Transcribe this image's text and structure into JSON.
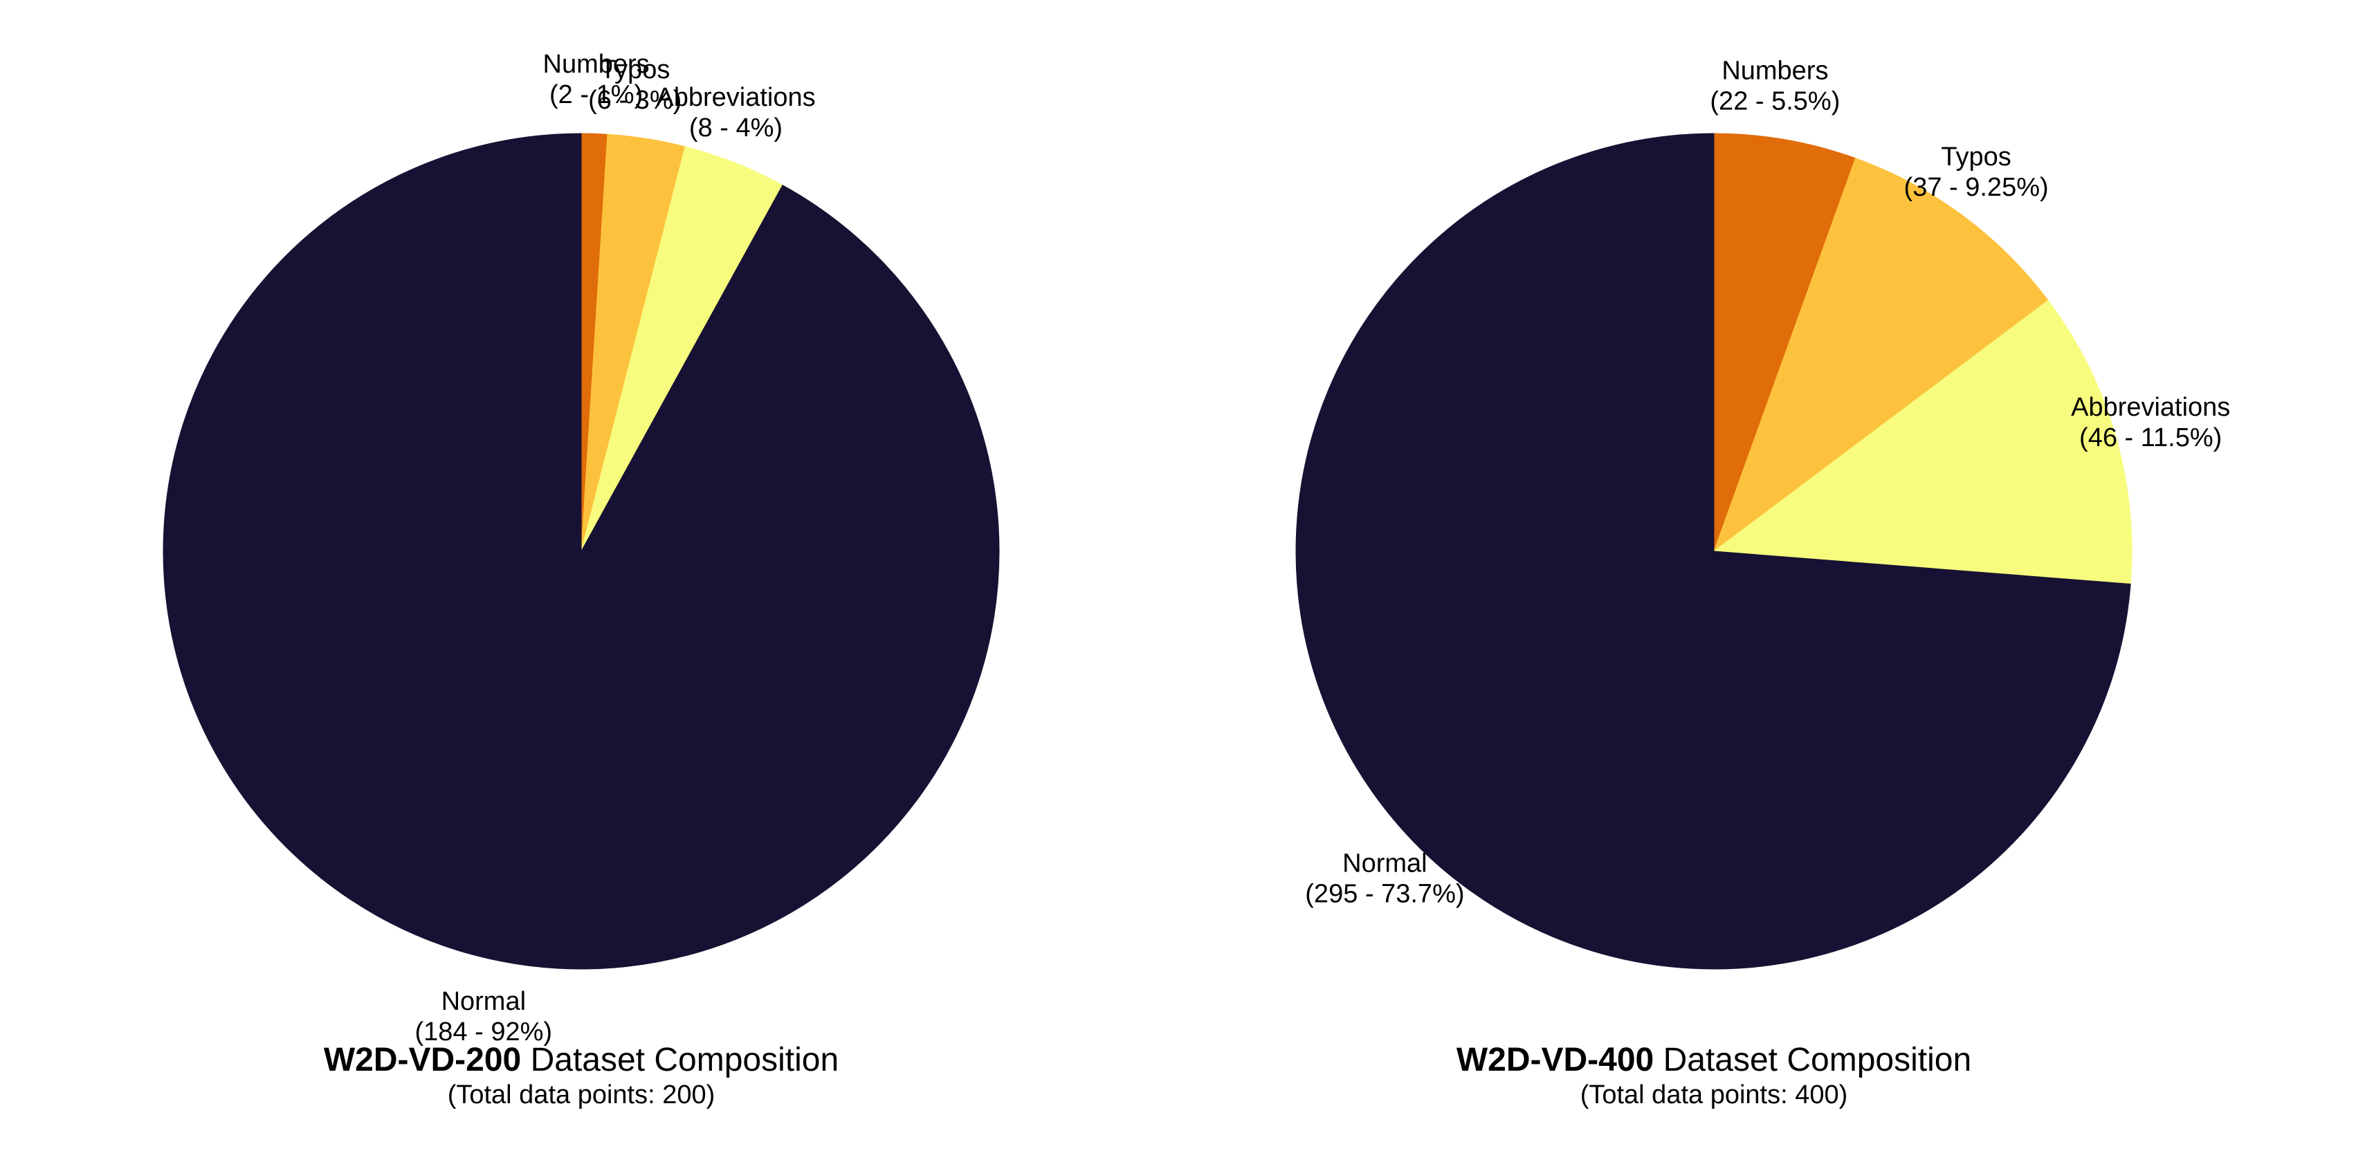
{
  "chart_data": [
    {
      "type": "pie",
      "title_bold": "W2D-VD-200",
      "title_rest": " Dataset Composition",
      "subtitle": "(Total data points: 200)",
      "start_angle": 90,
      "direction": "clockwise",
      "slices": [
        {
          "name": "Numbers",
          "count": 2,
          "percent": 1,
          "detail": "(2 - 1%)",
          "color": "#e06c0a"
        },
        {
          "name": "Typos",
          "count": 6,
          "percent": 3,
          "detail": "(6 - 3%)",
          "color": "#fdc23d"
        },
        {
          "name": "Abbreviations",
          "count": 8,
          "percent": 4,
          "detail": "(8 - 4%)",
          "color": "#f7fc7e"
        },
        {
          "name": "Normal",
          "count": 184,
          "percent": 92,
          "detail": "(184 - 92%)",
          "color": "#171233"
        }
      ]
    },
    {
      "type": "pie",
      "title_bold": "W2D-VD-400",
      "title_rest": " Dataset Composition",
      "subtitle": "(Total data points: 400)",
      "start_angle": 90,
      "direction": "clockwise",
      "slices": [
        {
          "name": "Numbers",
          "count": 22,
          "percent": 5.5,
          "detail": "(22 - 5.5%)",
          "color": "#e06c0a"
        },
        {
          "name": "Typos",
          "count": 37,
          "percent": 9.25,
          "detail": "(37 - 9.25%)",
          "color": "#fdc23d"
        },
        {
          "name": "Abbreviations",
          "count": 46,
          "percent": 11.5,
          "detail": "(46 - 11.5%)",
          "color": "#f7fc7e"
        },
        {
          "name": "Normal",
          "count": 295,
          "percent": 73.7,
          "detail": "(295 - 73.7%)",
          "color": "#171233"
        }
      ]
    }
  ]
}
